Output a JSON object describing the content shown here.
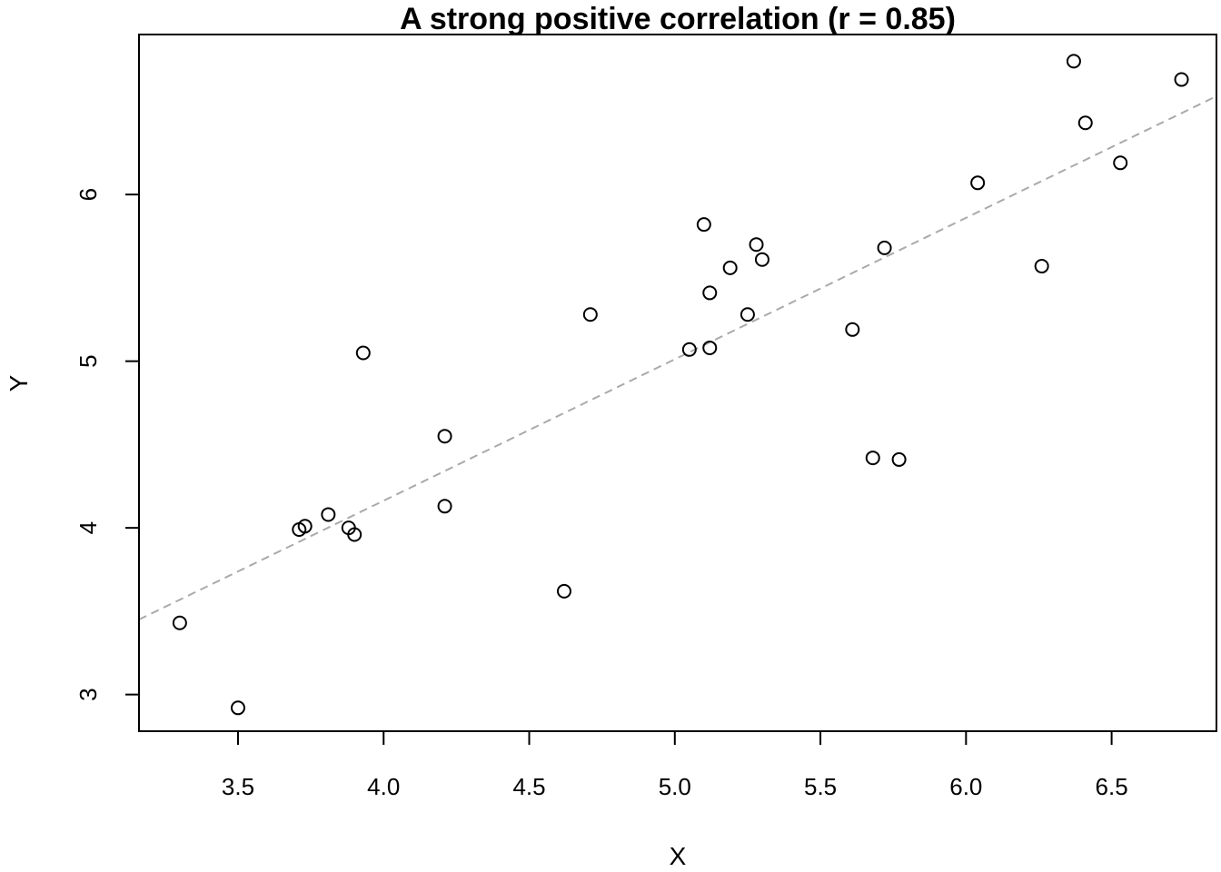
{
  "chart_data": {
    "type": "scatter",
    "title": "A strong positive correlation (r = 0.85)",
    "xlabel": "X",
    "ylabel": "Y",
    "xlim": [
      3.16,
      6.86
    ],
    "ylim": [
      2.78,
      6.96
    ],
    "xticks": [
      "3.5",
      "4.0",
      "4.5",
      "5.0",
      "5.5",
      "6.0",
      "6.5"
    ],
    "yticks": [
      "3",
      "4",
      "5",
      "6"
    ],
    "grid": false,
    "trendline": {
      "style": "dashed",
      "color": "#aaaaaa",
      "start": [
        3.16,
        3.45
      ],
      "end": [
        6.86,
        6.59
      ]
    },
    "points": [
      {
        "x": 3.3,
        "y": 3.43
      },
      {
        "x": 3.5,
        "y": 2.92
      },
      {
        "x": 3.71,
        "y": 3.99
      },
      {
        "x": 3.73,
        "y": 4.01
      },
      {
        "x": 3.81,
        "y": 4.08
      },
      {
        "x": 3.88,
        "y": 4.0
      },
      {
        "x": 3.9,
        "y": 3.96
      },
      {
        "x": 3.93,
        "y": 5.05
      },
      {
        "x": 4.21,
        "y": 4.13
      },
      {
        "x": 4.21,
        "y": 4.55
      },
      {
        "x": 4.62,
        "y": 3.62
      },
      {
        "x": 4.71,
        "y": 5.28
      },
      {
        "x": 5.05,
        "y": 5.07
      },
      {
        "x": 5.1,
        "y": 5.82
      },
      {
        "x": 5.12,
        "y": 5.08
      },
      {
        "x": 5.12,
        "y": 5.41
      },
      {
        "x": 5.19,
        "y": 5.56
      },
      {
        "x": 5.25,
        "y": 5.28
      },
      {
        "x": 5.28,
        "y": 5.7
      },
      {
        "x": 5.3,
        "y": 5.61
      },
      {
        "x": 5.61,
        "y": 5.19
      },
      {
        "x": 5.68,
        "y": 4.42
      },
      {
        "x": 5.72,
        "y": 5.68
      },
      {
        "x": 5.77,
        "y": 4.41
      },
      {
        "x": 6.04,
        "y": 6.07
      },
      {
        "x": 6.26,
        "y": 5.57
      },
      {
        "x": 6.37,
        "y": 6.8
      },
      {
        "x": 6.41,
        "y": 6.43
      },
      {
        "x": 6.53,
        "y": 6.19
      },
      {
        "x": 6.74,
        "y": 6.69
      }
    ]
  }
}
